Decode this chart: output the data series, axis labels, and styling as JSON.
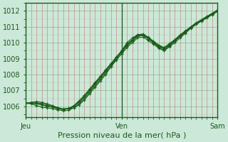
{
  "title": "Pression niveau de la mer( hPa )",
  "bg_color": "#cce8d8",
  "plot_bg": "#cce8d8",
  "line_color": "#1a5c1a",
  "ylim": [
    1005.3,
    1012.5
  ],
  "yticks": [
    1006,
    1007,
    1008,
    1009,
    1010,
    1011,
    1012
  ],
  "xtick_labels": [
    "Jeu",
    "Ven",
    "Sam"
  ],
  "xtick_positions": [
    0.0,
    0.5,
    1.0
  ],
  "vline_x": 0.5,
  "series_hpa": [
    [
      1006.2,
      1006.2,
      1006.15,
      1006.1,
      1006.0,
      1005.95,
      1005.85,
      1005.8,
      1005.85,
      1005.9,
      1006.1,
      1006.4,
      1006.8,
      1007.2,
      1007.6,
      1008.0,
      1008.5,
      1009.0,
      1009.5,
      1010.0,
      1010.3,
      1010.5,
      1010.5,
      1010.3,
      1010.0,
      1009.7,
      1009.5,
      1009.8,
      1010.1,
      1010.4,
      1010.7,
      1011.0,
      1011.2,
      1011.4,
      1011.6,
      1011.8,
      1012.0
    ],
    [
      1006.2,
      1006.25,
      1006.3,
      1006.25,
      1006.15,
      1006.05,
      1005.9,
      1005.8,
      1005.85,
      1006.05,
      1006.35,
      1006.7,
      1007.1,
      1007.5,
      1007.9,
      1008.3,
      1008.7,
      1009.1,
      1009.5,
      1009.9,
      1010.2,
      1010.5,
      1010.55,
      1010.35,
      1010.1,
      1009.85,
      1009.7,
      1009.95,
      1010.2,
      1010.5,
      1010.75,
      1011.0,
      1011.25,
      1011.45,
      1011.65,
      1011.85,
      1012.05
    ],
    [
      1006.2,
      1006.15,
      1006.05,
      1005.95,
      1005.9,
      1005.85,
      1005.78,
      1005.72,
      1005.75,
      1005.9,
      1006.15,
      1006.5,
      1006.9,
      1007.3,
      1007.7,
      1008.1,
      1008.5,
      1008.9,
      1009.3,
      1009.7,
      1010.0,
      1010.3,
      1010.35,
      1010.15,
      1009.9,
      1009.65,
      1009.5,
      1009.75,
      1010.0,
      1010.3,
      1010.6,
      1010.9,
      1011.15,
      1011.35,
      1011.55,
      1011.75,
      1011.95
    ],
    [
      1006.2,
      1006.2,
      1006.2,
      1006.1,
      1006.0,
      1005.95,
      1005.88,
      1005.82,
      1005.85,
      1005.98,
      1006.25,
      1006.6,
      1007.0,
      1007.4,
      1007.8,
      1008.2,
      1008.6,
      1009.0,
      1009.4,
      1009.8,
      1010.1,
      1010.4,
      1010.45,
      1010.25,
      1010.0,
      1009.75,
      1009.6,
      1009.85,
      1010.1,
      1010.4,
      1010.65,
      1010.95,
      1011.2,
      1011.4,
      1011.6,
      1011.8,
      1012.0
    ],
    [
      1006.2,
      1006.2,
      1006.22,
      1006.18,
      1006.08,
      1006.0,
      1005.92,
      1005.84,
      1005.88,
      1006.0,
      1006.28,
      1006.62,
      1007.05,
      1007.45,
      1007.85,
      1008.25,
      1008.65,
      1009.05,
      1009.45,
      1009.85,
      1010.15,
      1010.45,
      1010.5,
      1010.3,
      1010.05,
      1009.8,
      1009.65,
      1009.9,
      1010.15,
      1010.45,
      1010.7,
      1011.0,
      1011.22,
      1011.42,
      1011.62,
      1011.82,
      1012.02
    ]
  ]
}
